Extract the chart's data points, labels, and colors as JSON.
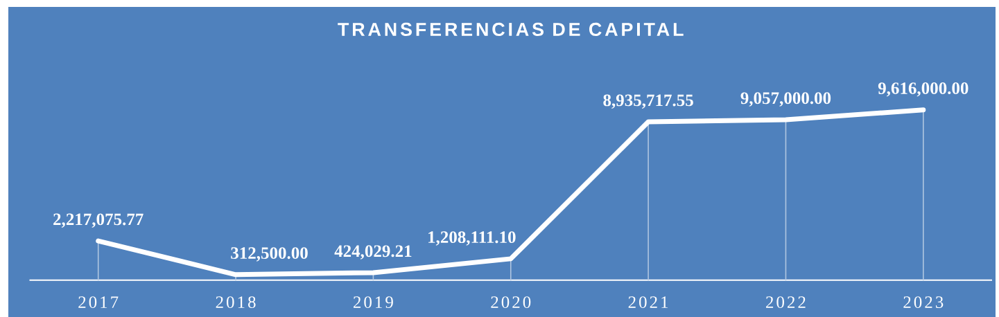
{
  "chart_data": {
    "type": "line",
    "title": "TRANSFERENCIAS DE CAPITAL",
    "categories": [
      "2017",
      "2018",
      "2019",
      "2020",
      "2021",
      "2022",
      "2023"
    ],
    "values": [
      2217075.77,
      312500.0,
      424029.21,
      1208111.1,
      8935717.55,
      9057000.0,
      9616000.0
    ],
    "value_labels": [
      "2,217,075.77",
      "312,500.00",
      "424,029.21",
      "1,208,111.10",
      "8,935,717.55",
      "9,057,000.00",
      "9,616,000.00"
    ],
    "color": "#ffffff",
    "grid": "x",
    "tick_labels": "x",
    "marker": "none",
    "line_style": "solid"
  }
}
